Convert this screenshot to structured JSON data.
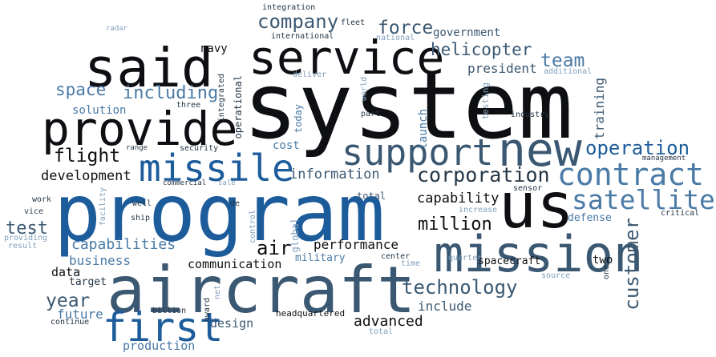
{
  "palette": {
    "black": "#0d0f12",
    "dark": "#243646",
    "slate": "#3b5872",
    "blue": "#1d5c9b",
    "steel": "#4a7aa6",
    "light": "#7f9fbd"
  },
  "words": [
    {
      "id": "system",
      "text": "system",
      "color": "black"
    },
    {
      "id": "program",
      "text": "program",
      "color": "blue"
    },
    {
      "id": "aircraft",
      "text": "aircraft",
      "color": "slate"
    },
    {
      "id": "said",
      "text": "said",
      "color": "black"
    },
    {
      "id": "provide",
      "text": "provide",
      "color": "black"
    },
    {
      "id": "service",
      "text": "service",
      "color": "black"
    },
    {
      "id": "mission",
      "text": "mission",
      "color": "slate"
    },
    {
      "id": "us",
      "text": "us",
      "color": "black"
    },
    {
      "id": "new",
      "text": "new",
      "color": "slate"
    },
    {
      "id": "support",
      "text": "support",
      "color": "slate"
    },
    {
      "id": "missile",
      "text": "missile",
      "color": "blue"
    },
    {
      "id": "first",
      "text": "first",
      "color": "blue"
    },
    {
      "id": "contract",
      "text": "contract",
      "color": "steel"
    },
    {
      "id": "satellite",
      "text": "satellite",
      "color": "steel"
    },
    {
      "id": "corporation",
      "text": "corporation",
      "color": "dark"
    },
    {
      "id": "technology",
      "text": "technology",
      "color": "slate"
    },
    {
      "id": "operation",
      "text": "operation",
      "color": "blue"
    },
    {
      "id": "company",
      "text": "company",
      "color": "slate"
    },
    {
      "id": "force",
      "text": "force",
      "color": "slate"
    },
    {
      "id": "team",
      "text": "team",
      "color": "steel"
    },
    {
      "id": "helicopter",
      "text": "helicopter",
      "color": "slate"
    },
    {
      "id": "customer",
      "text": "customer",
      "color": "slate"
    },
    {
      "id": "million",
      "text": "million",
      "color": "black"
    },
    {
      "id": "year",
      "text": "year",
      "color": "slate"
    },
    {
      "id": "space",
      "text": "space",
      "color": "steel"
    },
    {
      "id": "including",
      "text": "including",
      "color": "steel"
    },
    {
      "id": "flight",
      "text": "flight",
      "color": "black"
    },
    {
      "id": "test",
      "text": "test",
      "color": "slate"
    },
    {
      "id": "air",
      "text": "air",
      "color": "black"
    },
    {
      "id": "capabilities",
      "text": "capabilities",
      "color": "steel"
    },
    {
      "id": "development",
      "text": "development",
      "color": "black"
    },
    {
      "id": "information",
      "text": "information",
      "color": "slate"
    },
    {
      "id": "capability",
      "text": "capability",
      "color": "black"
    },
    {
      "id": "performance",
      "text": "performance",
      "color": "black"
    },
    {
      "id": "advanced",
      "text": "advanced",
      "color": "black"
    },
    {
      "id": "include",
      "text": "include",
      "color": "slate"
    },
    {
      "id": "business",
      "text": "business",
      "color": "steel"
    },
    {
      "id": "communication",
      "text": "communication",
      "color": "black"
    },
    {
      "id": "future",
      "text": "future",
      "color": "steel"
    },
    {
      "id": "production",
      "text": "production",
      "color": "steel"
    },
    {
      "id": "design",
      "text": "design",
      "color": "slate"
    },
    {
      "id": "data",
      "text": "data",
      "color": "black"
    },
    {
      "id": "target",
      "text": "target",
      "color": "dark"
    },
    {
      "id": "president",
      "text": "president",
      "color": "slate"
    },
    {
      "id": "training",
      "text": "training",
      "color": "slate"
    },
    {
      "id": "launch",
      "text": "launch",
      "color": "steel"
    },
    {
      "id": "government",
      "text": "government",
      "color": "slate"
    },
    {
      "id": "navy",
      "text": "navy",
      "color": "black"
    },
    {
      "id": "defense",
      "text": "defense",
      "color": "steel"
    },
    {
      "id": "cost",
      "text": "cost",
      "color": "steel"
    },
    {
      "id": "solution",
      "text": "solution",
      "color": "steel"
    },
    {
      "id": "two",
      "text": "two",
      "color": "black"
    },
    {
      "id": "spacecraft",
      "text": "spacecraft",
      "color": "black"
    },
    {
      "id": "military",
      "text": "military",
      "color": "steel"
    },
    {
      "id": "headquartered",
      "text": "headquartered",
      "color": "black"
    },
    {
      "id": "operational",
      "text": "operational",
      "color": "dark"
    },
    {
      "id": "today",
      "text": "today",
      "color": "steel"
    },
    {
      "id": "global",
      "text": "global",
      "color": "light"
    },
    {
      "id": "fleet",
      "text": "fleet",
      "color": "dark"
    },
    {
      "id": "integration",
      "text": "integration",
      "color": "dark"
    },
    {
      "id": "international",
      "text": "international",
      "color": "dark"
    },
    {
      "id": "national",
      "text": "national",
      "color": "light"
    },
    {
      "id": "radar",
      "text": "radar",
      "color": "light"
    },
    {
      "id": "deliver",
      "text": "deliver",
      "color": "light"
    },
    {
      "id": "integrated",
      "text": "integrated",
      "color": "dark"
    },
    {
      "id": "world",
      "text": "world",
      "color": "light"
    },
    {
      "id": "part",
      "text": "part",
      "color": "dark"
    },
    {
      "id": "testing",
      "text": "testing",
      "color": "light"
    },
    {
      "id": "industry",
      "text": "industry",
      "color": "dark"
    },
    {
      "id": "additional",
      "text": "additional",
      "color": "light"
    },
    {
      "id": "management",
      "text": "management",
      "color": "dark"
    },
    {
      "id": "three",
      "text": "three",
      "color": "dark"
    },
    {
      "id": "range",
      "text": "range",
      "color": "dark"
    },
    {
      "id": "security",
      "text": "security",
      "color": "dark"
    },
    {
      "id": "commercial",
      "text": "commercial",
      "color": "dark"
    },
    {
      "id": "sale",
      "text": "sale",
      "color": "light"
    },
    {
      "id": "total-mid",
      "text": "total",
      "color": "slate"
    },
    {
      "id": "sensor",
      "text": "sensor",
      "color": "dark"
    },
    {
      "id": "increase",
      "text": "increase",
      "color": "light"
    },
    {
      "id": "critical",
      "text": "critical",
      "color": "dark"
    },
    {
      "id": "work",
      "text": "work",
      "color": "dark"
    },
    {
      "id": "facility",
      "text": "facility",
      "color": "light"
    },
    {
      "id": "well",
      "text": "well",
      "color": "dark"
    },
    {
      "id": "de",
      "text": "de",
      "color": "dark"
    },
    {
      "id": "vice",
      "text": "vice",
      "color": "dark"
    },
    {
      "id": "ship",
      "text": "ship",
      "color": "dark"
    },
    {
      "id": "providing",
      "text": "providing",
      "color": "light"
    },
    {
      "id": "result",
      "text": "result",
      "color": "light"
    },
    {
      "id": "control",
      "text": "control",
      "color": "light"
    },
    {
      "id": "quarter",
      "text": "quarter",
      "color": "light"
    },
    {
      "id": "center",
      "text": "center",
      "color": "dark"
    },
    {
      "id": "time",
      "text": "time",
      "color": "light"
    },
    {
      "id": "one",
      "text": "one",
      "color": "dark"
    },
    {
      "id": "source",
      "text": "source",
      "color": "light"
    },
    {
      "id": "net",
      "text": "net",
      "color": "light"
    },
    {
      "id": "award",
      "text": "award",
      "color": "dark"
    },
    {
      "id": "billion",
      "text": "billion",
      "color": "dark"
    },
    {
      "id": "continue",
      "text": "continue",
      "color": "dark"
    },
    {
      "id": "total-bottom",
      "text": "total",
      "color": "light"
    }
  ]
}
